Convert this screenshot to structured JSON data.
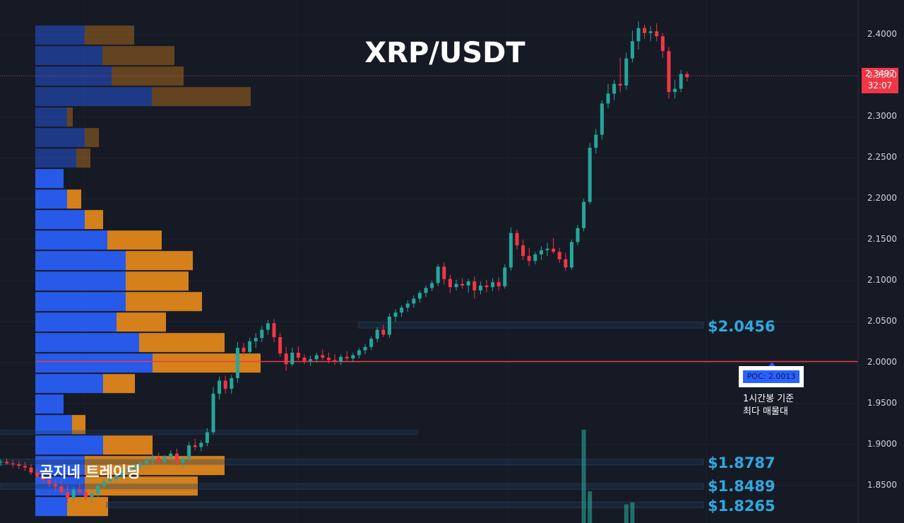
{
  "title": "XRP/USDT",
  "watermark": "곰지네 트레이딩",
  "current_price": {
    "price": "2.3497",
    "countdown": "32:07"
  },
  "poc": {
    "label": "POC: 2.0013",
    "note_line1": "1시간봉 기준",
    "note_line2": "최다 매물대"
  },
  "levels": [
    {
      "label": "$2.0456",
      "value": 2.0456
    },
    {
      "label": "$1.8787",
      "value": 1.8787
    },
    {
      "label": "$1.8489",
      "value": 1.8489
    },
    {
      "label": "$1.8265",
      "value": 1.8265
    }
  ],
  "colors": {
    "up": "#26a69a",
    "down": "#f23645",
    "vp_up": "#2962ff",
    "vp_down": "#f7931a",
    "poc_line": "#f23645",
    "level": "#2fa8e0"
  },
  "chart_data": {
    "type": "candlestick",
    "title": "XRP/USDT",
    "ylim": [
      1.815,
      2.44
    ],
    "y_ticks": [
      "2.4000",
      "2.3500",
      "2.3000",
      "2.2500",
      "2.2000",
      "2.1500",
      "2.1000",
      "2.0500",
      "2.0000",
      "1.9500",
      "1.9000",
      "1.8500"
    ],
    "poc": 2.0013,
    "last_price": 2.3497,
    "candles": [
      [
        1.878,
        1.882,
        1.874,
        1.879
      ],
      [
        1.879,
        1.883,
        1.875,
        1.877
      ],
      [
        1.877,
        1.881,
        1.872,
        1.876
      ],
      [
        1.876,
        1.88,
        1.87,
        1.874
      ],
      [
        1.874,
        1.879,
        1.868,
        1.872
      ],
      [
        1.872,
        1.876,
        1.863,
        1.866
      ],
      [
        1.866,
        1.87,
        1.858,
        1.861
      ],
      [
        1.861,
        1.866,
        1.853,
        1.857
      ],
      [
        1.857,
        1.862,
        1.848,
        1.852
      ],
      [
        1.852,
        1.858,
        1.843,
        1.849
      ],
      [
        1.849,
        1.856,
        1.839,
        1.842
      ],
      [
        1.842,
        1.85,
        1.829,
        1.835
      ],
      [
        1.835,
        1.848,
        1.83,
        1.845
      ],
      [
        1.845,
        1.852,
        1.838,
        1.842
      ],
      [
        1.842,
        1.849,
        1.832,
        1.836
      ],
      [
        1.836,
        1.845,
        1.828,
        1.84
      ],
      [
        1.84,
        1.853,
        1.836,
        1.85
      ],
      [
        1.85,
        1.858,
        1.846,
        1.855
      ],
      [
        1.855,
        1.861,
        1.85,
        1.858
      ],
      [
        1.858,
        1.866,
        1.854,
        1.862
      ],
      [
        1.862,
        1.869,
        1.857,
        1.866
      ],
      [
        1.866,
        1.873,
        1.861,
        1.87
      ],
      [
        1.87,
        1.877,
        1.865,
        1.874
      ],
      [
        1.874,
        1.88,
        1.869,
        1.877
      ],
      [
        1.877,
        1.884,
        1.872,
        1.881
      ],
      [
        1.881,
        1.888,
        1.875,
        1.884
      ],
      [
        1.884,
        1.89,
        1.877,
        1.88
      ],
      [
        1.88,
        1.887,
        1.875,
        1.885
      ],
      [
        1.885,
        1.893,
        1.88,
        1.889
      ],
      [
        1.889,
        1.895,
        1.874,
        1.878
      ],
      [
        1.878,
        1.886,
        1.872,
        1.883
      ],
      [
        1.883,
        1.903,
        1.88,
        1.899
      ],
      [
        1.899,
        1.907,
        1.893,
        1.897
      ],
      [
        1.897,
        1.905,
        1.892,
        1.902
      ],
      [
        1.902,
        1.92,
        1.898,
        1.915
      ],
      [
        1.915,
        1.97,
        1.912,
        1.962
      ],
      [
        1.962,
        1.983,
        1.955,
        1.978
      ],
      [
        1.978,
        1.984,
        1.962,
        1.968
      ],
      [
        1.968,
        1.985,
        1.962,
        1.981
      ],
      [
        1.981,
        2.025,
        1.975,
        2.018
      ],
      [
        2.018,
        2.024,
        2.008,
        2.013
      ],
      [
        2.013,
        2.03,
        2.009,
        2.026
      ],
      [
        2.026,
        2.036,
        2.018,
        2.03
      ],
      [
        2.03,
        2.045,
        2.025,
        2.04
      ],
      [
        2.04,
        2.052,
        2.034,
        2.048
      ],
      [
        2.048,
        2.053,
        2.025,
        2.031
      ],
      [
        2.031,
        2.036,
        2.007,
        2.011
      ],
      [
        2.011,
        2.019,
        1.99,
        1.998
      ],
      [
        1.998,
        2.018,
        1.995,
        2.012
      ],
      [
        2.012,
        2.02,
        2.003,
        2.006
      ],
      [
        2.006,
        2.01,
        1.998,
        2.002
      ],
      [
        2.002,
        2.008,
        1.996,
        2.004
      ],
      [
        2.004,
        2.012,
        2.0,
        2.009
      ],
      [
        2.009,
        2.016,
        2.003,
        2.006
      ],
      [
        2.006,
        2.012,
        1.999,
        2.003
      ],
      [
        2.003,
        2.01,
        1.997,
        2.001
      ],
      [
        2.001,
        2.01,
        1.997,
        2.007
      ],
      [
        2.007,
        2.014,
        2.002,
        2.005
      ],
      [
        2.005,
        2.012,
        2.001,
        2.009
      ],
      [
        2.009,
        2.018,
        2.005,
        2.015
      ],
      [
        2.015,
        2.023,
        2.01,
        2.019
      ],
      [
        2.019,
        2.032,
        2.015,
        2.029
      ],
      [
        2.029,
        2.043,
        2.025,
        2.04
      ],
      [
        2.04,
        2.046,
        2.031,
        2.034
      ],
      [
        2.034,
        2.06,
        2.03,
        2.056
      ],
      [
        2.056,
        2.065,
        2.05,
        2.061
      ],
      [
        2.061,
        2.07,
        2.056,
        2.067
      ],
      [
        2.067,
        2.076,
        2.062,
        2.072
      ],
      [
        2.072,
        2.082,
        2.067,
        2.078
      ],
      [
        2.078,
        2.088,
        2.073,
        2.085
      ],
      [
        2.085,
        2.094,
        2.08,
        2.091
      ],
      [
        2.091,
        2.1,
        2.087,
        2.097
      ],
      [
        2.097,
        2.12,
        2.093,
        2.117
      ],
      [
        2.117,
        2.122,
        2.095,
        2.102
      ],
      [
        2.102,
        2.107,
        2.085,
        2.092
      ],
      [
        2.092,
        2.101,
        2.088,
        2.096
      ],
      [
        2.096,
        2.103,
        2.09,
        2.094
      ],
      [
        2.094,
        2.102,
        2.085,
        2.099
      ],
      [
        2.099,
        2.105,
        2.078,
        2.088
      ],
      [
        2.088,
        2.099,
        2.083,
        2.094
      ],
      [
        2.094,
        2.101,
        2.086,
        2.092
      ],
      [
        2.092,
        2.103,
        2.087,
        2.098
      ],
      [
        2.098,
        2.104,
        2.088,
        2.093
      ],
      [
        2.093,
        2.12,
        2.09,
        2.116
      ],
      [
        2.116,
        2.165,
        2.112,
        2.158
      ],
      [
        2.158,
        2.162,
        2.138,
        2.143
      ],
      [
        2.143,
        2.15,
        2.125,
        2.13
      ],
      [
        2.13,
        2.14,
        2.118,
        2.124
      ],
      [
        2.124,
        2.135,
        2.12,
        2.132
      ],
      [
        2.132,
        2.142,
        2.125,
        2.137
      ],
      [
        2.137,
        2.146,
        2.13,
        2.139
      ],
      [
        2.139,
        2.152,
        2.133,
        2.135
      ],
      [
        2.135,
        2.14,
        2.122,
        2.126
      ],
      [
        2.126,
        2.134,
        2.112,
        2.116
      ],
      [
        2.116,
        2.15,
        2.113,
        2.147
      ],
      [
        2.147,
        2.168,
        2.143,
        2.164
      ],
      [
        2.164,
        2.2,
        2.16,
        2.196
      ],
      [
        2.196,
        2.268,
        2.193,
        2.262
      ],
      [
        2.262,
        2.285,
        2.255,
        2.278
      ],
      [
        2.278,
        2.32,
        2.272,
        2.316
      ],
      [
        2.316,
        2.34,
        2.31,
        2.328
      ],
      [
        2.328,
        2.345,
        2.32,
        2.34
      ],
      [
        2.34,
        2.372,
        2.33,
        2.338
      ],
      [
        2.338,
        2.378,
        2.333,
        2.371
      ],
      [
        2.371,
        2.405,
        2.366,
        2.392
      ],
      [
        2.392,
        2.416,
        2.382,
        2.408
      ],
      [
        2.408,
        2.412,
        2.395,
        2.402
      ],
      [
        2.402,
        2.41,
        2.392,
        2.404
      ],
      [
        2.404,
        2.414,
        2.392,
        2.398
      ],
      [
        2.398,
        2.402,
        2.372,
        2.38
      ],
      [
        2.38,
        2.385,
        2.322,
        2.33
      ],
      [
        2.33,
        2.345,
        2.322,
        2.334
      ],
      [
        2.334,
        2.357,
        2.33,
        2.352
      ],
      [
        2.352,
        2.355,
        2.343,
        2.348
      ]
    ],
    "volume_profile": [
      {
        "price": 2.3994,
        "up": 70,
        "down": 70
      },
      {
        "price": 2.3744,
        "up": 95,
        "down": 102
      },
      {
        "price": 2.3494,
        "up": 108,
        "down": 102
      },
      {
        "price": 2.3244,
        "up": 165,
        "down": 140
      },
      {
        "price": 2.2994,
        "up": 45,
        "down": 8
      },
      {
        "price": 2.2744,
        "up": 70,
        "down": 20
      },
      {
        "price": 2.2494,
        "up": 58,
        "down": 20
      },
      {
        "price": 2.2244,
        "up": 40,
        "down": 0
      },
      {
        "price": 2.1994,
        "up": 45,
        "down": 20
      },
      {
        "price": 2.1744,
        "up": 70,
        "down": 26
      },
      {
        "price": 2.1494,
        "up": 102,
        "down": 77
      },
      {
        "price": 2.1244,
        "up": 128,
        "down": 95
      },
      {
        "price": 2.0994,
        "up": 128,
        "down": 89
      },
      {
        "price": 2.0744,
        "up": 128,
        "down": 108
      },
      {
        "price": 2.0494,
        "up": 115,
        "down": 70
      },
      {
        "price": 2.0244,
        "up": 147,
        "down": 121
      },
      {
        "price": 1.9994,
        "up": 166,
        "down": 153
      },
      {
        "price": 1.9744,
        "up": 96,
        "down": 45
      },
      {
        "price": 1.9494,
        "up": 40,
        "down": 0
      },
      {
        "price": 1.9244,
        "up": 52,
        "down": 19
      },
      {
        "price": 1.8994,
        "up": 96,
        "down": 70
      },
      {
        "price": 1.8744,
        "up": 70,
        "down": 198
      },
      {
        "price": 1.8494,
        "up": 70,
        "down": 160
      },
      {
        "price": 1.8244,
        "up": 45,
        "down": 58
      }
    ],
    "volume_spikes": [
      {
        "candle": 96,
        "value": 1.0
      },
      {
        "candle": 97,
        "value": 0.34
      },
      {
        "candle": 103,
        "value": 0.2
      },
      {
        "candle": 104,
        "value": 0.22
      }
    ]
  }
}
